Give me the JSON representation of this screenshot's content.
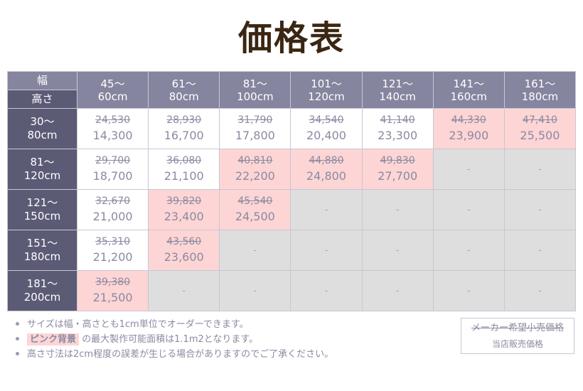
{
  "title": "価格表",
  "table": {
    "corner_top": "幅",
    "corner_bottom": "高さ",
    "columns": [
      {
        "line1": "45〜",
        "line2": "60cm"
      },
      {
        "line1": "61〜",
        "line2": "80cm"
      },
      {
        "line1": "81〜",
        "line2": "100cm"
      },
      {
        "line1": "101〜",
        "line2": "120cm"
      },
      {
        "line1": "121〜",
        "line2": "140cm"
      },
      {
        "line1": "141〜",
        "line2": "160cm"
      },
      {
        "line1": "161〜",
        "line2": "180cm"
      }
    ],
    "rows": [
      {
        "line1": "30〜",
        "line2": "80cm",
        "cells": [
          {
            "bg": "white",
            "orig": "24,530",
            "sale": "14,300"
          },
          {
            "bg": "white",
            "orig": "28,930",
            "sale": "16,700"
          },
          {
            "bg": "white",
            "orig": "31,790",
            "sale": "17,800"
          },
          {
            "bg": "white",
            "orig": "34,540",
            "sale": "20,400"
          },
          {
            "bg": "white",
            "orig": "41,140",
            "sale": "23,300"
          },
          {
            "bg": "pink",
            "orig": "44,330",
            "sale": "23,900"
          },
          {
            "bg": "pink",
            "orig": "47,410",
            "sale": "25,500"
          }
        ]
      },
      {
        "line1": "81〜",
        "line2": "120cm",
        "cells": [
          {
            "bg": "white",
            "orig": "29,700",
            "sale": "18,700"
          },
          {
            "bg": "white",
            "orig": "36,080",
            "sale": "21,100"
          },
          {
            "bg": "pink",
            "orig": "40,810",
            "sale": "22,200"
          },
          {
            "bg": "pink",
            "orig": "44,880",
            "sale": "24,800"
          },
          {
            "bg": "pink",
            "orig": "49,830",
            "sale": "27,700"
          },
          {
            "bg": "gray",
            "text": "-"
          },
          {
            "bg": "gray",
            "text": "-"
          }
        ]
      },
      {
        "line1": "121〜",
        "line2": "150cm",
        "cells": [
          {
            "bg": "white",
            "orig": "32,670",
            "sale": "21,000"
          },
          {
            "bg": "pink",
            "orig": "39,820",
            "sale": "23,400"
          },
          {
            "bg": "pink",
            "orig": "45,540",
            "sale": "24,500"
          },
          {
            "bg": "gray",
            "text": "-"
          },
          {
            "bg": "gray",
            "text": "-"
          },
          {
            "bg": "gray",
            "text": "-"
          },
          {
            "bg": "gray",
            "text": "-"
          }
        ]
      },
      {
        "line1": "151〜",
        "line2": "180cm",
        "cells": [
          {
            "bg": "white",
            "orig": "35,310",
            "sale": "21,200"
          },
          {
            "bg": "pink",
            "orig": "43,560",
            "sale": "23,600"
          },
          {
            "bg": "gray",
            "text": "-"
          },
          {
            "bg": "gray",
            "text": "-"
          },
          {
            "bg": "gray",
            "text": "-"
          },
          {
            "bg": "gray",
            "text": "-"
          },
          {
            "bg": "gray",
            "text": "-"
          }
        ]
      },
      {
        "line1": "181〜",
        "line2": "200cm",
        "cells": [
          {
            "bg": "pink",
            "orig": "39,380",
            "sale": "21,500"
          },
          {
            "bg": "gray",
            "text": "-"
          },
          {
            "bg": "gray",
            "text": "-"
          },
          {
            "bg": "gray",
            "text": "-"
          },
          {
            "bg": "gray",
            "text": "-"
          },
          {
            "bg": "gray",
            "text": "-"
          },
          {
            "bg": "gray",
            "text": "-"
          }
        ]
      }
    ]
  },
  "notes": {
    "note1": "サイズは幅・高さとも1cm単位でオーダーできます。",
    "note2_highlight": "ピンク背景",
    "note2_rest": " の最大製作可能面積は1.1m2となります。",
    "note3": "高さ寸法は2cm程度の誤差が生じる場合がありますのでご了承ください。"
  },
  "legend": {
    "original_price_label": "メーカー希望小売価格",
    "sale_price_label": "当店販売価格"
  },
  "colors": {
    "title": "#3a2612",
    "header_light": "#85859f",
    "header_dark": "#5c5b76",
    "pink_bg": "#fdd5d5",
    "gray_bg": "#dedede",
    "price_text": "#8a8aa2"
  }
}
